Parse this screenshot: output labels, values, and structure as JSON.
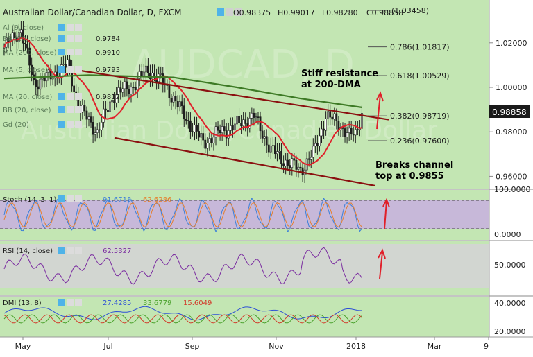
{
  "header": {
    "symbol": "Australian Dollar/Canadian Dollar, D, FXCM",
    "ohlc": [
      {
        "k": "O",
        "v": "0.98375"
      },
      {
        "k": "H",
        "v": "0.99017"
      },
      {
        "k": "L",
        "v": "0.98280"
      },
      {
        "k": "C",
        "v": "0.98858"
      }
    ]
  },
  "indicators": [
    {
      "label": "Al (9, close)",
      "value": ""
    },
    {
      "label": "BB (20, close)",
      "value": "0.9784"
    },
    {
      "label": "MA (200, close)",
      "value": "0.9910"
    },
    {
      "label": "MA (5, close)",
      "value": "0.9793"
    },
    {
      "label": "MA (20, close)",
      "value": "0.9812"
    },
    {
      "label": "BB (20, close)",
      "value": ""
    },
    {
      "label": "Gd (20)",
      "value": ""
    }
  ],
  "watermark": {
    "line1": "AUDCAD, D",
    "line2": "Australian Dollar/Canadian Dollar"
  },
  "colors": {
    "bg": "#c3e6b3",
    "candle": "#1e1e1e",
    "ma_fast": "#e0202a",
    "ma_200": "#3d7a25",
    "channel": "#8b1010",
    "stoch_k": "#3b7fd9",
    "stoch_d": "#e57f2d",
    "stoch_band": "#c8a8e6",
    "rsi": "#7a2ba0",
    "dmi_adx": "#2d4fd6",
    "dmi_plus": "#4aa12c",
    "dmi_minus": "#d23a2a",
    "price_label_bg": "#1a1a1a",
    "arrow": "#e0202a"
  },
  "price_axis": {
    "ticks": [
      "1.02000",
      "1.00000",
      "0.98000",
      "0.96000"
    ],
    "current": "0.98858"
  },
  "fib_levels": [
    {
      "label": "(1.03458)",
      "value": 1.03458
    },
    {
      "label": "0.786(1.01817)",
      "value": 1.01817
    },
    {
      "label": "0.618(1.00529)",
      "value": 1.00529
    },
    {
      "label": "0.382(0.98719)",
      "value": 0.98719
    },
    {
      "label": "0.236(0.97600)",
      "value": 0.976
    }
  ],
  "annotations": [
    {
      "line1": "Stiff resistance",
      "line2": "at 200-DMA"
    },
    {
      "line1": "Breaks channel",
      "line2": "top at 0.9855"
    }
  ],
  "stoch": {
    "label": "Stoch (14, 3, 1)",
    "k": "91.6718",
    "d": "62.6286",
    "ticks": [
      "100.0000",
      "0.0000"
    ]
  },
  "rsi": {
    "label": "RSI (14, close)",
    "value": "62.5327",
    "ticks": [
      "50.0000"
    ]
  },
  "dmi": {
    "label": "DMI (13, 8)",
    "adx": "27.4285",
    "plus": "33.6779",
    "minus": "15.6049",
    "ticks": [
      "40.0000",
      "20.0000"
    ]
  },
  "time_axis": [
    "May",
    "Jul",
    "Sep",
    "Nov",
    "2018",
    "Mar",
    "9"
  ],
  "chart_data": {
    "type": "candlestick",
    "timeframe": "D",
    "series": [
      {
        "name": "MA (200, close)",
        "last": 0.991
      },
      {
        "name": "MA (20, close)",
        "last": 0.9812
      }
    ],
    "ylim": [
      0.955,
      1.04
    ],
    "channel": {
      "upper": [
        [
          0,
          1.0078
        ],
        [
          100,
          0.9855
        ]
      ],
      "lower": [
        [
          0,
          0.9773
        ],
        [
          100,
          0.9558
        ]
      ],
      "note": "Breaks channel top at 0.9855"
    },
    "resistance": {
      "name": "200-DMA",
      "value": 0.991
    },
    "fib": [
      {
        "ratio": 0.786,
        "value": 1.01817
      },
      {
        "ratio": 0.618,
        "value": 1.00529
      },
      {
        "ratio": 0.382,
        "value": 0.98719
      },
      {
        "ratio": 0.236,
        "value": 0.976
      }
    ],
    "last_close": 0.98858,
    "stochastic": {
      "k": 91.6718,
      "d": 62.6286,
      "range": [
        0,
        100
      ]
    },
    "rsi": {
      "value": 62.5327
    },
    "dmi": {
      "adx": 27.4285,
      "plus_di": 33.6779,
      "minus_di": 15.6049
    },
    "x_ticks": [
      "May",
      "Jul",
      "Sep",
      "Nov",
      "2018",
      "Mar",
      "9"
    ]
  }
}
